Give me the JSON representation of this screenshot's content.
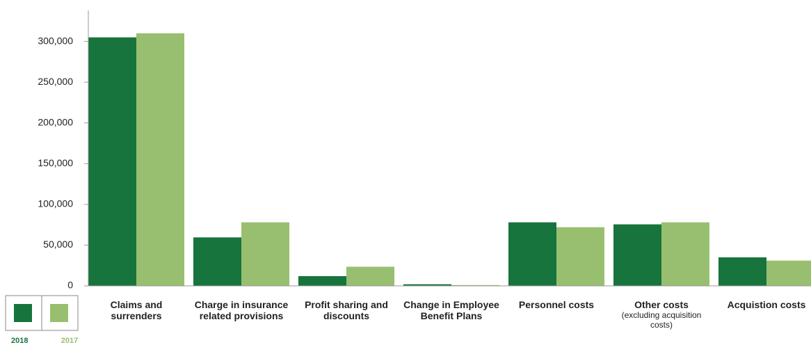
{
  "chart_data": {
    "type": "bar",
    "categories": [
      "Claims and surrenders",
      "Charge in insurance related provisions",
      "Profit sharing and discounts",
      "Change in Employee Benefit Plans",
      "Personnel costs",
      "Other costs",
      "Acquistion costs"
    ],
    "category_notes": [
      null,
      null,
      null,
      null,
      null,
      "(excluding acquisition costs)",
      null
    ],
    "series": [
      {
        "name": "2018",
        "color": "#17743c",
        "values": [
          305000,
          59500,
          12000,
          2000,
          78000,
          75500,
          35000
        ]
      },
      {
        "name": "2017",
        "color": "#98bf6f",
        "values": [
          310000,
          78000,
          23500,
          1000,
          72000,
          78000,
          31000
        ]
      }
    ],
    "ylim": [
      0,
      315000
    ],
    "yticks": [
      0,
      {
        "value": 50000,
        "label": "50,000"
      },
      {
        "value": 100000,
        "label": "100,000"
      },
      {
        "value": 150000,
        "label": "150,000"
      },
      {
        "value": 200000,
        "label": "200,000"
      },
      {
        "value": 250000,
        "label": "250,000"
      },
      {
        "value": 300000,
        "label": "300,000"
      }
    ],
    "legend": "bottom-left"
  }
}
